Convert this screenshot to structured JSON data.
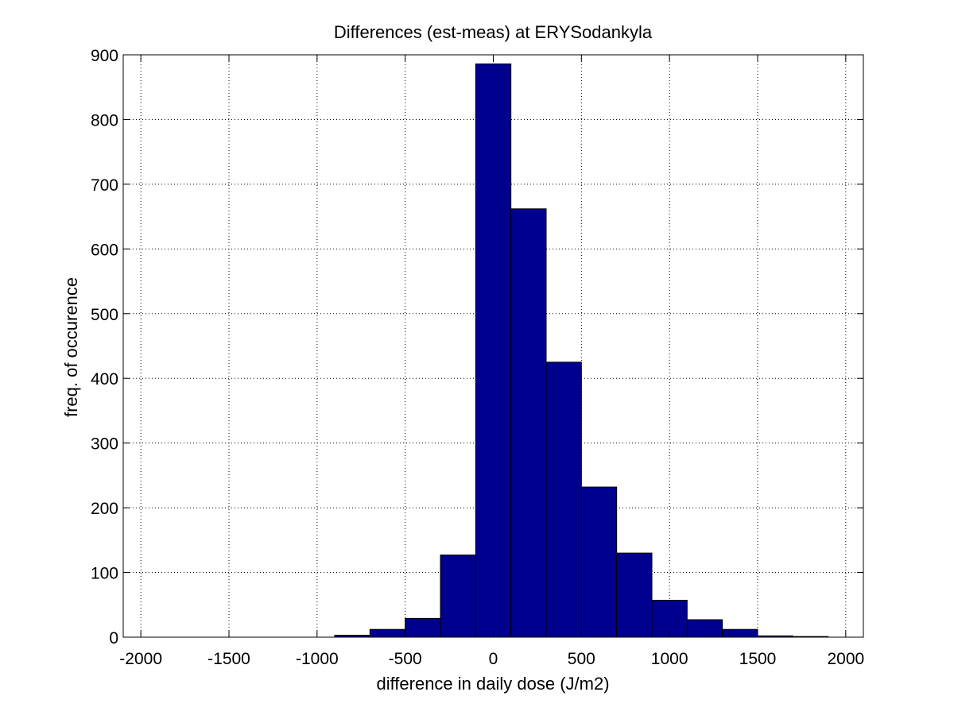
{
  "chart_data": {
    "type": "bar",
    "title": "Differences (est-meas) at ERYSodankyla",
    "xlabel": "difference in daily dose (J/m2)",
    "ylabel": "freq. of occurence",
    "xlim": [
      -2100,
      2100
    ],
    "ylim": [
      0,
      900
    ],
    "grid": true,
    "bar_color": "#00008F",
    "bins": [
      {
        "left": -1900,
        "right": -1700,
        "value": 0
      },
      {
        "left": -1700,
        "right": -1500,
        "value": 0
      },
      {
        "left": -1500,
        "right": -1300,
        "value": 0
      },
      {
        "left": -1300,
        "right": -1100,
        "value": 0
      },
      {
        "left": -1100,
        "right": -900,
        "value": 0
      },
      {
        "left": -900,
        "right": -700,
        "value": 3
      },
      {
        "left": -700,
        "right": -500,
        "value": 12
      },
      {
        "left": -500,
        "right": -300,
        "value": 29
      },
      {
        "left": -300,
        "right": -100,
        "value": 127
      },
      {
        "left": -100,
        "right": 100,
        "value": 886
      },
      {
        "left": 100,
        "right": 300,
        "value": 662
      },
      {
        "left": 300,
        "right": 500,
        "value": 425
      },
      {
        "left": 500,
        "right": 700,
        "value": 232
      },
      {
        "left": 700,
        "right": 900,
        "value": 130
      },
      {
        "left": 900,
        "right": 1100,
        "value": 57
      },
      {
        "left": 1100,
        "right": 1300,
        "value": 27
      },
      {
        "left": 1300,
        "right": 1500,
        "value": 12
      },
      {
        "left": 1500,
        "right": 1700,
        "value": 2
      },
      {
        "left": 1700,
        "right": 1900,
        "value": 1
      }
    ],
    "x_ticks": [
      -2000,
      -1500,
      -1000,
      -500,
      0,
      500,
      1000,
      1500,
      2000
    ],
    "y_ticks": [
      0,
      100,
      200,
      300,
      400,
      500,
      600,
      700,
      800,
      900
    ]
  }
}
